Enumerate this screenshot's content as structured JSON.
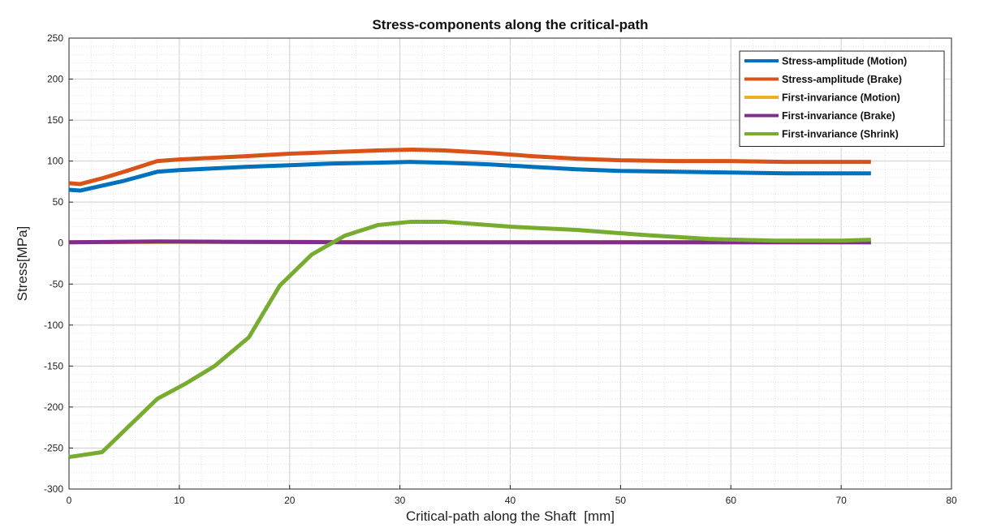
{
  "chart_data": {
    "type": "line",
    "title": "Stress-components along the critical-path",
    "xlabel": "Critical-path along the Shaft  [mm]",
    "ylabel": "Stress[MPa]",
    "xlim": [
      0,
      80
    ],
    "ylim": [
      -300,
      250
    ],
    "x_ticks": [
      "0",
      "10",
      "20",
      "30",
      "40",
      "50",
      "60",
      "70",
      "80"
    ],
    "y_ticks": [
      "250",
      "200",
      "150",
      "100",
      "50",
      "0",
      "-50",
      "-100",
      "-150",
      "-200",
      "-250",
      "-300"
    ],
    "grid": "on (major and minor)",
    "legend_position": "top-right",
    "series": [
      {
        "name": "Stress-amplitude (Motion)",
        "color": "#0072BD",
        "x": [
          0,
          1,
          3,
          5,
          8,
          10,
          13,
          16,
          20,
          24,
          28,
          31,
          34,
          38,
          42,
          46,
          50,
          55,
          60,
          65,
          70,
          72.7
        ],
        "y": [
          65,
          64,
          70,
          76,
          87,
          89,
          91,
          93,
          95,
          97,
          98,
          99,
          98,
          96,
          93,
          90,
          88,
          87,
          86,
          85,
          85,
          85
        ]
      },
      {
        "name": "Stress-amplitude (Brake)",
        "color": "#D95319",
        "x": [
          0,
          1,
          3,
          5,
          8,
          10,
          13,
          16,
          20,
          24,
          28,
          31,
          34,
          38,
          42,
          46,
          50,
          55,
          60,
          65,
          70,
          72.7
        ],
        "y": [
          73,
          72,
          79,
          87,
          100,
          102,
          104,
          106,
          109,
          111,
          113,
          114,
          113,
          110,
          106,
          103,
          101,
          100,
          100,
          99,
          99,
          99
        ]
      },
      {
        "name": "First-invariance (Motion)",
        "color": "#EDB120",
        "x": [
          0,
          10,
          20,
          30,
          40,
          50,
          60,
          70,
          72.7
        ],
        "y": [
          1,
          1.5,
          1.5,
          1,
          1,
          1,
          1,
          1,
          1
        ]
      },
      {
        "name": "First-invariance (Brake)",
        "color": "#7E2F8E",
        "x": [
          0,
          8,
          15,
          25,
          35,
          45,
          55,
          65,
          72.7
        ],
        "y": [
          1,
          2,
          1.5,
          1,
          1,
          1,
          1,
          1,
          1
        ]
      },
      {
        "name": "First-invariance (Shrink)",
        "color": "#77AC30",
        "x": [
          0,
          1,
          3,
          8,
          10.5,
          13.2,
          16.3,
          19.1,
          22,
          25,
          28,
          31,
          34,
          40,
          46,
          52,
          58,
          64,
          70,
          72.7
        ],
        "y": [
          -261,
          -259,
          -255,
          -190,
          -172,
          -150,
          -115,
          -52,
          -14,
          9,
          22,
          26,
          26,
          20,
          16,
          10,
          5,
          3,
          3,
          4
        ]
      }
    ]
  }
}
